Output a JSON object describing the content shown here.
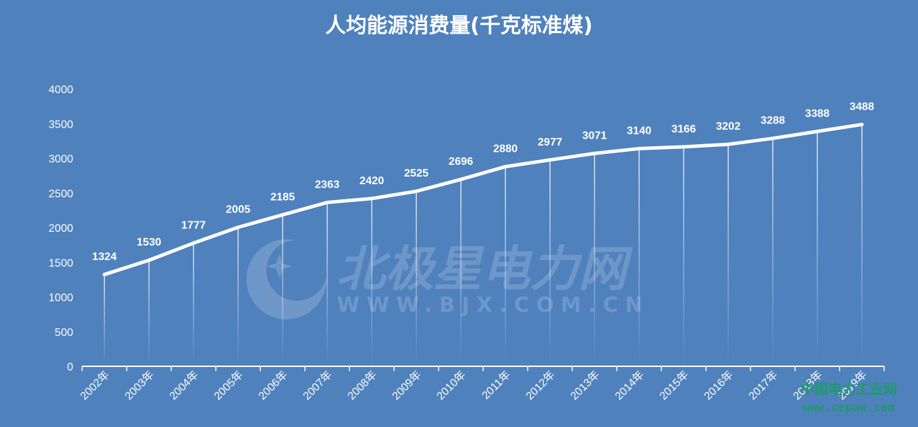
{
  "chart_data": {
    "type": "line",
    "title": "人均能源消费量(千克标准煤)",
    "xlabel": "",
    "ylabel": "",
    "categories": [
      "2002年",
      "2003年",
      "2004年",
      "2005年",
      "2006年",
      "2007年",
      "2008年",
      "2009年",
      "2010年",
      "2011年",
      "2012年",
      "2013年",
      "2014年",
      "2015年",
      "2016年",
      "2017年",
      "2018年",
      "2019年"
    ],
    "values": [
      1324,
      1530,
      1777,
      2005,
      2185,
      2363,
      2420,
      2525,
      2696,
      2880,
      2977,
      3071,
      3140,
      3166,
      3202,
      3288,
      3388,
      3488
    ],
    "yticks": [
      0,
      500,
      1000,
      1500,
      2000,
      2500,
      3000,
      3500,
      4000
    ],
    "ylim": [
      0,
      4000
    ],
    "grid": false,
    "legend": "none",
    "colors": {
      "background": "#4f81bd",
      "line": "#ffffff",
      "text": "#ffffff",
      "watermark_green": "#1e9a6a"
    }
  },
  "watermarks": {
    "main_text": "北极星电力网",
    "main_url": "WWW.BJX.COM.CN",
    "corner_text": "中国电力工业网",
    "corner_url": "www.cepow.com",
    "logo_icon": "star-logo-icon"
  }
}
